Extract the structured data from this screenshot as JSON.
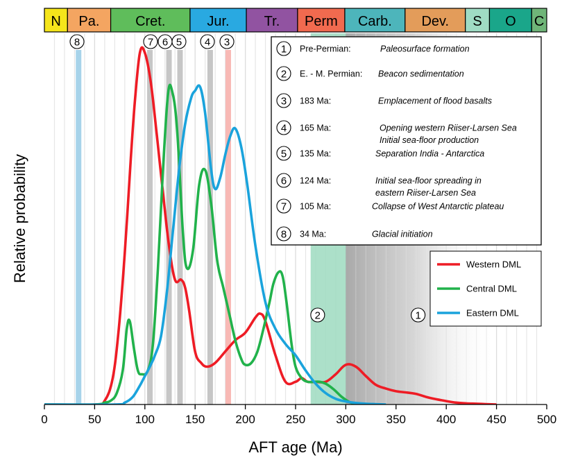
{
  "chart_data": {
    "type": "line",
    "xlabel": "AFT age (Ma)",
    "ylabel": "Relative probability",
    "xlim": [
      0,
      500
    ],
    "xticks": [
      0,
      50,
      100,
      150,
      200,
      250,
      300,
      350,
      400,
      450,
      500
    ],
    "periods": [
      {
        "label": "N",
        "start": 0,
        "end": 23,
        "color": "#f5e51b"
      },
      {
        "label": "Pa.",
        "start": 23,
        "end": 66,
        "color": "#f4a561"
      },
      {
        "label": "Cret.",
        "start": 66,
        "end": 145,
        "color": "#5fbd5b"
      },
      {
        "label": "Jur.",
        "start": 145,
        "end": 201,
        "color": "#29a9e1"
      },
      {
        "label": "Tr.",
        "start": 201,
        "end": 252,
        "color": "#9153a1"
      },
      {
        "label": "Perm",
        "start": 252,
        "end": 299,
        "color": "#f16a4f"
      },
      {
        "label": "Carb.",
        "start": 299,
        "end": 359,
        "color": "#4db5bb"
      },
      {
        "label": "Dev.",
        "start": 359,
        "end": 419,
        "color": "#e39c5a"
      },
      {
        "label": "S",
        "start": 419,
        "end": 443,
        "color": "#9fdcc4"
      },
      {
        "label": "O",
        "start": 443,
        "end": 485,
        "color": "#1aa68a"
      },
      {
        "label": "C",
        "start": 485,
        "end": 500,
        "color": "#6fb578"
      }
    ],
    "event_markers": [
      {
        "num": "8",
        "age": 34
      },
      {
        "num": "7",
        "age": 105
      },
      {
        "num": "6",
        "age": 124
      },
      {
        "num": "5",
        "age": 135
      },
      {
        "num": "4",
        "age": 165
      },
      {
        "num": "3",
        "age": 183
      }
    ],
    "events": [
      {
        "num": "1",
        "age": "Pre-Permian:",
        "desc": "Paleosurface formation"
      },
      {
        "num": "2",
        "age": "E. - M. Permian:",
        "desc": "Beacon sedimentation"
      },
      {
        "num": "3",
        "age": "183 Ma:",
        "desc": "Emplacement of flood basalts"
      },
      {
        "num": "4",
        "age": "165 Ma:",
        "desc": "Opening western Riiser-Larsen Sea",
        "desc2": "Initial sea-floor production"
      },
      {
        "num": "5",
        "age": "135 Ma:",
        "desc": "Separation India - Antarctica"
      },
      {
        "num": "6",
        "age": "124 Ma:",
        "desc": "Initial sea-floor spreading in",
        "desc2": "eastern Riiser-Larsen Sea"
      },
      {
        "num": "7",
        "age": "105 Ma:",
        "desc": "Collapse of West Antarctic plateau"
      },
      {
        "num": "8",
        "age": "34 Ma:",
        "desc": "Glacial initiation"
      }
    ],
    "zone_labels": [
      {
        "num": "2",
        "age": 272
      },
      {
        "num": "1",
        "age": 372
      }
    ],
    "series": [
      {
        "name": "Western DML",
        "color": "#ee1c25",
        "x": [
          0,
          50,
          60,
          68,
          74,
          80,
          86,
          90,
          95,
          100,
          106,
          112,
          118,
          124,
          130,
          136,
          140,
          144,
          150,
          156,
          162,
          170,
          180,
          190,
          200,
          210,
          215,
          220,
          230,
          240,
          250,
          256,
          262,
          270,
          280,
          290,
          300,
          310,
          320,
          330,
          340,
          350,
          360,
          370,
          380,
          390,
          400,
          410,
          420,
          430,
          440,
          450
        ],
        "y": [
          0,
          0,
          0.01,
          0.07,
          0.2,
          0.4,
          0.65,
          0.8,
          0.93,
          0.93,
          0.85,
          0.71,
          0.56,
          0.42,
          0.33,
          0.33,
          0.31,
          0.25,
          0.14,
          0.11,
          0.1,
          0.11,
          0.14,
          0.17,
          0.19,
          0.23,
          0.24,
          0.22,
          0.13,
          0.06,
          0.06,
          0.07,
          0.06,
          0.06,
          0.06,
          0.08,
          0.105,
          0.1,
          0.075,
          0.052,
          0.042,
          0.035,
          0.032,
          0.028,
          0.02,
          0.014,
          0.009,
          0.005,
          0.003,
          0.002,
          0.001,
          0
        ]
      },
      {
        "name": "Central DML",
        "color": "#21b24b",
        "x": [
          0,
          50,
          60,
          66,
          72,
          78,
          82,
          85,
          89,
          93,
          97,
          103,
          108,
          113,
          118,
          123,
          127,
          132,
          138,
          142,
          148,
          154,
          160,
          166,
          172,
          178,
          184,
          190,
          196,
          200,
          206,
          212,
          218,
          224,
          228,
          233,
          237,
          241,
          246,
          250,
          256,
          262,
          268,
          274,
          280,
          288,
          296,
          304,
          310,
          320
        ],
        "y": [
          0,
          0,
          0.005,
          0.01,
          0.03,
          0.09,
          0.2,
          0.22,
          0.15,
          0.09,
          0.08,
          0.09,
          0.16,
          0.36,
          0.62,
          0.82,
          0.83,
          0.73,
          0.45,
          0.36,
          0.41,
          0.58,
          0.62,
          0.53,
          0.38,
          0.31,
          0.24,
          0.17,
          0.12,
          0.105,
          0.11,
          0.14,
          0.2,
          0.27,
          0.32,
          0.35,
          0.34,
          0.27,
          0.16,
          0.1,
          0.07,
          0.06,
          0.06,
          0.06,
          0.055,
          0.04,
          0.02,
          0.006,
          0.002,
          0
        ]
      },
      {
        "name": "Eastern DML",
        "color": "#1aa3dc",
        "x": [
          0,
          70,
          80,
          88,
          95,
          100,
          105,
          110,
          116,
          122,
          128,
          134,
          140,
          146,
          150,
          155,
          160,
          166,
          170,
          175,
          180,
          185,
          190,
          196,
          202,
          210,
          220,
          230,
          240,
          250,
          260,
          270,
          280,
          290,
          300,
          310,
          320,
          330,
          340
        ],
        "y": [
          0,
          0,
          0.005,
          0.02,
          0.05,
          0.075,
          0.1,
          0.13,
          0.18,
          0.3,
          0.46,
          0.62,
          0.74,
          0.81,
          0.83,
          0.84,
          0.77,
          0.62,
          0.57,
          0.6,
          0.66,
          0.71,
          0.73,
          0.68,
          0.58,
          0.42,
          0.27,
          0.2,
          0.16,
          0.13,
          0.09,
          0.055,
          0.03,
          0.015,
          0.008,
          0.004,
          0.002,
          0.001,
          0
        ]
      }
    ]
  }
}
